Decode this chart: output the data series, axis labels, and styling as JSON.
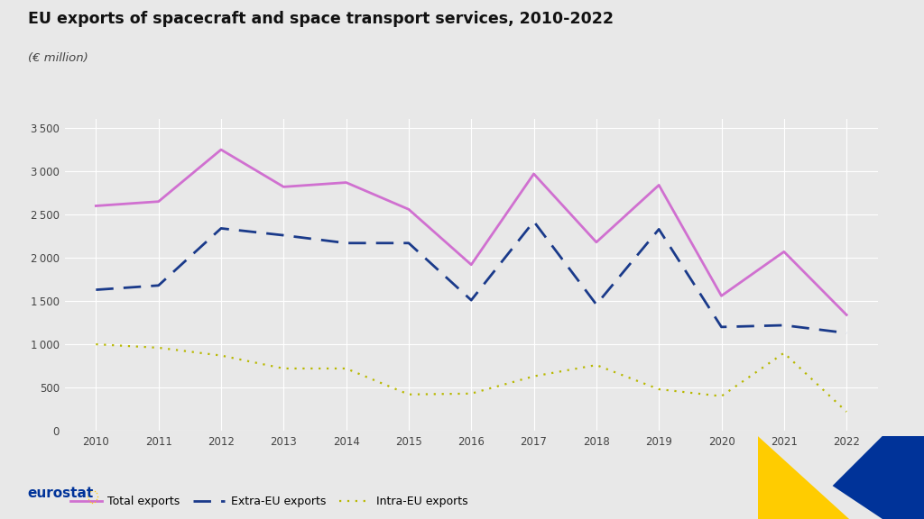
{
  "title": "EU exports of spacecraft and space transport services, 2010-2022",
  "subtitle": "(€ million)",
  "years": [
    2010,
    2011,
    2012,
    2013,
    2014,
    2015,
    2016,
    2017,
    2018,
    2019,
    2020,
    2021,
    2022
  ],
  "total_exports": [
    2600,
    2650,
    3250,
    2820,
    2870,
    2560,
    1920,
    2970,
    2180,
    2840,
    1560,
    2070,
    1340
  ],
  "extra_eu_exports": [
    1630,
    1680,
    2340,
    2260,
    2170,
    2170,
    1510,
    2420,
    1460,
    2330,
    1200,
    1220,
    1130
  ],
  "intra_eu_exports": [
    1000,
    960,
    870,
    720,
    720,
    420,
    430,
    630,
    760,
    480,
    400,
    900,
    220
  ],
  "ylim": [
    0,
    3600
  ],
  "yticks": [
    0,
    500,
    1000,
    1500,
    2000,
    2500,
    3000,
    3500
  ],
  "total_color": "#d070d0",
  "extra_eu_color": "#1a3a8a",
  "intra_eu_color": "#b8b800",
  "bg_color": "#e8e8e8",
  "plot_bg_color": "#e8e8e8",
  "grid_color": "#ffffff",
  "legend_labels": [
    "Total exports",
    "Extra-EU exports",
    "Intra-EU exports"
  ]
}
